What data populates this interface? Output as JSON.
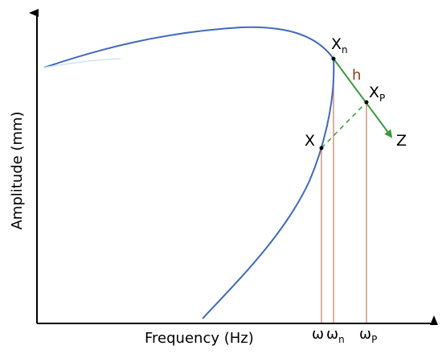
{
  "axes": {
    "x_label": "Frequency (Hz)",
    "y_label": "Amplitude (mm)"
  },
  "points": {
    "xn": {
      "base": "X",
      "sub": "n"
    },
    "xp": {
      "base": "X",
      "sub": "P"
    },
    "x": "X",
    "z": "Z",
    "h": "h"
  },
  "ticks": {
    "omega": "ω",
    "omega_n": {
      "base": "ω",
      "sub": "n"
    },
    "omega_p": {
      "base": "ω",
      "sub": "P"
    }
  },
  "colors": {
    "curve": "#4169c0",
    "arrow": "#3c9a3c",
    "drop_lines": "#c8866a",
    "h_label": "#8b3a1a",
    "axis": "#000000"
  }
}
